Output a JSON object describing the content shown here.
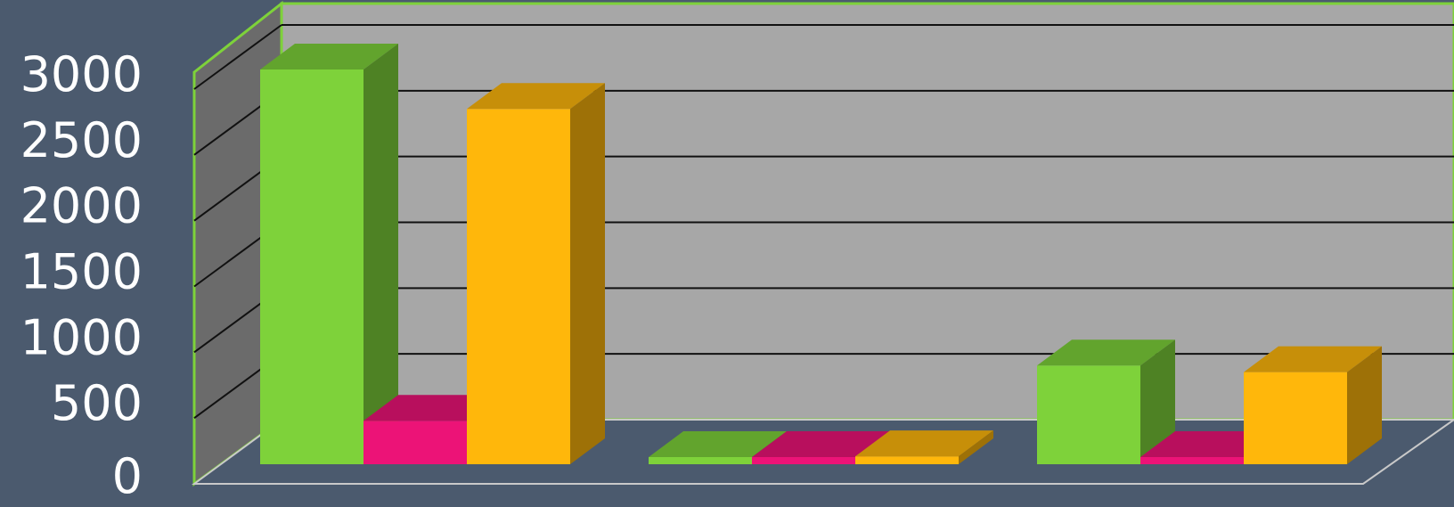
{
  "chart_data": {
    "type": "bar",
    "style": "3d-clustered",
    "title": "",
    "xlabel": "",
    "ylabel": "",
    "categories": [
      "",
      "",
      ""
    ],
    "series": [
      {
        "color": "#7ed23a",
        "values": [
          3000,
          50,
          750
        ]
      },
      {
        "color": "#ec1377",
        "values": [
          330,
          0,
          50
        ]
      },
      {
        "color": "#ffb70b",
        "values": [
          2700,
          60,
          700
        ]
      }
    ],
    "ylim": [
      0,
      3000
    ],
    "yticks": [
      0,
      500,
      1000,
      1500,
      2000,
      2500,
      3000
    ],
    "ytick_labels": [
      "0",
      "500",
      "1000",
      "1500",
      "2000",
      "2500",
      "3000"
    ],
    "grid": true,
    "legend": "none"
  },
  "colors": {
    "background": "#4b5a6e",
    "back_wall": "#a7a7a7",
    "side_wall": "#6b6b6b",
    "floor": "#4b5a6e",
    "wall_border": "#7ed23a",
    "gridline": "#111111",
    "tick_text": "#ffffff"
  }
}
